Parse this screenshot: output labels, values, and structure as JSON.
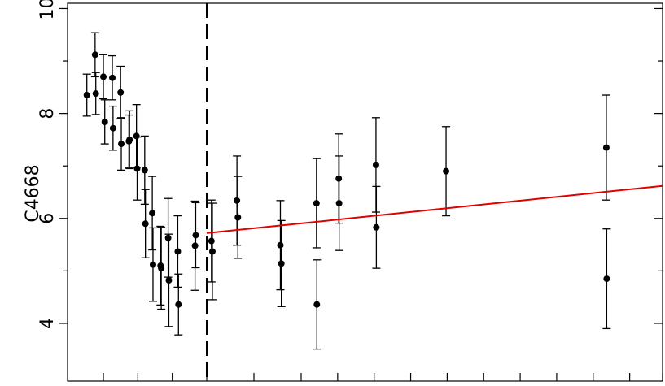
{
  "chart_data": {
    "type": "scatter",
    "title": "",
    "xlabel": "",
    "ylabel": "C4668",
    "xlim": [
      -2.02,
      10.9
    ],
    "ylim": [
      2.9,
      10.1
    ],
    "y_ticks": [
      4,
      6,
      8,
      10
    ],
    "y_tick_labels": [
      "4",
      "6",
      "8",
      "10"
    ],
    "y_minor_ticks": [
      5,
      7,
      9
    ],
    "x_ticks": [
      -1.5,
      -1,
      -0.5,
      0,
      0.5,
      1,
      2,
      3,
      4,
      5,
      6,
      7,
      8,
      9,
      10,
      10.9
    ],
    "grid": false,
    "vline": {
      "x": 0.0,
      "style": "dashed"
    },
    "fit_line": {
      "color": "#e00000",
      "x": [
        0.0,
        10.9
      ],
      "y": [
        5.72,
        6.62
      ]
    },
    "points": [
      {
        "x": -1.74,
        "y": 8.35,
        "err": 0.4
      },
      {
        "x": -1.62,
        "y": 9.12,
        "err": 0.42
      },
      {
        "x": -1.61,
        "y": 8.38,
        "err": 0.4
      },
      {
        "x": -1.5,
        "y": 8.7,
        "err": 0.42
      },
      {
        "x": -1.48,
        "y": 7.84,
        "err": 0.42
      },
      {
        "x": -1.37,
        "y": 8.68,
        "err": 0.42
      },
      {
        "x": -1.36,
        "y": 7.72,
        "err": 0.42
      },
      {
        "x": -1.25,
        "y": 8.4,
        "err": 0.5
      },
      {
        "x": -1.24,
        "y": 7.42,
        "err": 0.5
      },
      {
        "x": -1.13,
        "y": 7.47,
        "err": 0.5
      },
      {
        "x": -1.12,
        "y": 7.5,
        "err": 0.55
      },
      {
        "x": -1.02,
        "y": 7.57,
        "err": 0.6
      },
      {
        "x": -1.01,
        "y": 6.95,
        "err": 0.6
      },
      {
        "x": -0.9,
        "y": 6.92,
        "err": 0.65
      },
      {
        "x": -0.89,
        "y": 5.9,
        "err": 0.65
      },
      {
        "x": -0.79,
        "y": 6.1,
        "err": 0.7
      },
      {
        "x": -0.78,
        "y": 5.12,
        "err": 0.7
      },
      {
        "x": -0.67,
        "y": 5.1,
        "err": 0.75
      },
      {
        "x": -0.66,
        "y": 5.05,
        "err": 0.78
      },
      {
        "x": -0.56,
        "y": 5.63,
        "err": 0.75
      },
      {
        "x": -0.55,
        "y": 4.82,
        "err": 0.88
      },
      {
        "x": -0.42,
        "y": 5.37,
        "err": 0.68
      },
      {
        "x": -0.41,
        "y": 4.36,
        "err": 0.58
      },
      {
        "x": -0.17,
        "y": 5.48,
        "err": 0.85
      },
      {
        "x": -0.16,
        "y": 5.68,
        "err": 0.62
      },
      {
        "x": 0.05,
        "y": 5.57,
        "err": 0.78
      },
      {
        "x": 0.06,
        "y": 5.37,
        "err": 0.92
      },
      {
        "x": 0.32,
        "y": 6.34,
        "err": 0.85
      },
      {
        "x": 0.33,
        "y": 6.02,
        "err": 0.78
      },
      {
        "x": 0.78,
        "y": 5.49,
        "err": 0.85
      },
      {
        "x": 0.79,
        "y": 5.14,
        "err": 0.82
      },
      {
        "x": 1.42,
        "y": 6.29,
        "err": 0.85
      },
      {
        "x": 1.43,
        "y": 4.36,
        "err": 0.85
      },
      {
        "x": 2.03,
        "y": 6.76,
        "err": 0.85
      },
      {
        "x": 2.04,
        "y": 6.29,
        "err": 0.9
      },
      {
        "x": 3.05,
        "y": 7.02,
        "err": 0.9
      },
      {
        "x": 3.06,
        "y": 5.83,
        "err": 0.78
      },
      {
        "x": 4.97,
        "y": 6.9,
        "err": 0.85
      },
      {
        "x": 9.36,
        "y": 7.35,
        "err": 1.0
      },
      {
        "x": 9.37,
        "y": 4.85,
        "err": 0.95
      }
    ]
  }
}
